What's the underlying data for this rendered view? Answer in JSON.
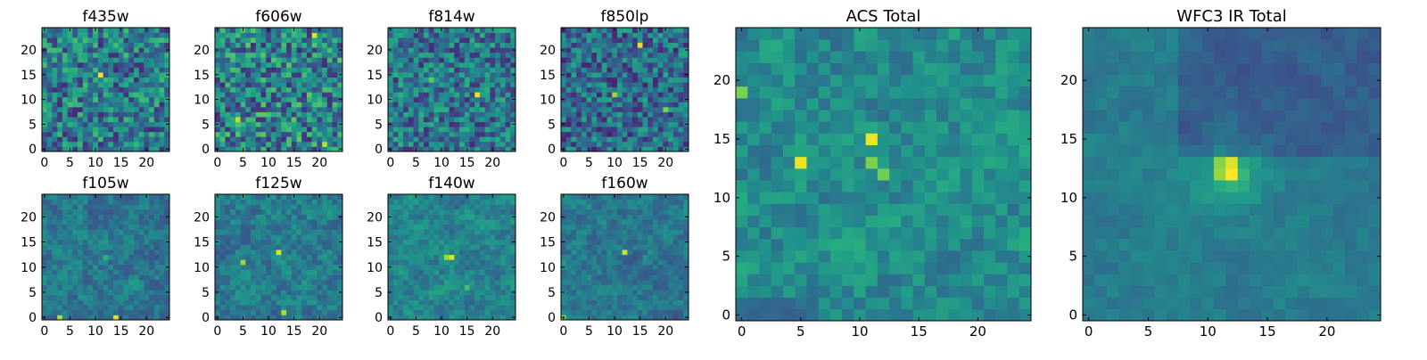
{
  "chart_data": [
    {
      "type": "heatmap",
      "title": "f435w",
      "grid": false,
      "pixels": 25,
      "xlim": [
        -0.5,
        24.5
      ],
      "ylim": [
        -0.5,
        24.5
      ],
      "xticks": [
        0,
        5,
        10,
        15,
        20
      ],
      "yticks": [
        0,
        5,
        10,
        15,
        20
      ],
      "colormap": "viridis",
      "hotspots": [
        {
          "x": 11,
          "y": 15,
          "value": 0.98
        },
        {
          "x": 16,
          "y": 19,
          "value": 0.7
        }
      ],
      "noise": 0.55,
      "base": 0.42,
      "seed": 11
    },
    {
      "type": "heatmap",
      "title": "f606w",
      "grid": false,
      "pixels": 25,
      "xlim": [
        -0.5,
        24.5
      ],
      "ylim": [
        -0.5,
        24.5
      ],
      "xticks": [
        0,
        5,
        10,
        15,
        20
      ],
      "yticks": [
        0,
        5,
        10,
        15,
        20
      ],
      "colormap": "viridis",
      "hotspots": [
        {
          "x": 19,
          "y": 23,
          "value": 0.95
        },
        {
          "x": 4,
          "y": 6,
          "value": 0.9
        },
        {
          "x": 21,
          "y": 1,
          "value": 0.9
        }
      ],
      "noise": 0.6,
      "base": 0.45,
      "seed": 23
    },
    {
      "type": "heatmap",
      "title": "f814w",
      "grid": false,
      "pixels": 25,
      "xlim": [
        -0.5,
        24.5
      ],
      "ylim": [
        -0.5,
        24.5
      ],
      "xticks": [
        0,
        5,
        10,
        15,
        20
      ],
      "yticks": [
        0,
        5,
        10,
        15,
        20
      ],
      "colormap": "viridis",
      "hotspots": [
        {
          "x": 17,
          "y": 11,
          "value": 0.97
        },
        {
          "x": 8,
          "y": 14,
          "value": 0.75
        }
      ],
      "noise": 0.5,
      "base": 0.4,
      "seed": 37
    },
    {
      "type": "heatmap",
      "title": "f850lp",
      "grid": false,
      "pixels": 25,
      "xlim": [
        -0.5,
        24.5
      ],
      "ylim": [
        -0.5,
        24.5
      ],
      "xticks": [
        0,
        5,
        10,
        15,
        20
      ],
      "yticks": [
        0,
        5,
        10,
        15,
        20
      ],
      "colormap": "viridis",
      "hotspots": [
        {
          "x": 15,
          "y": 21,
          "value": 0.96
        },
        {
          "x": 10,
          "y": 11,
          "value": 0.85
        },
        {
          "x": 20,
          "y": 8,
          "value": 0.8
        }
      ],
      "noise": 0.48,
      "base": 0.36,
      "seed": 41
    },
    {
      "type": "heatmap",
      "title": "f105w",
      "grid": false,
      "pixels": 25,
      "xlim": [
        -0.5,
        24.5
      ],
      "ylim": [
        -0.5,
        24.5
      ],
      "xticks": [
        0,
        5,
        10,
        15,
        20
      ],
      "yticks": [
        0,
        5,
        10,
        15,
        20
      ],
      "colormap": "viridis",
      "hotspots": [
        {
          "x": 14,
          "y": 0,
          "value": 0.95
        },
        {
          "x": 3,
          "y": 0,
          "value": 0.88
        },
        {
          "x": 12,
          "y": 12,
          "value": 0.65
        }
      ],
      "noise": 0.4,
      "base": 0.4,
      "seed": 53
    },
    {
      "type": "heatmap",
      "title": "f125w",
      "grid": false,
      "pixels": 25,
      "xlim": [
        -0.5,
        24.5
      ],
      "ylim": [
        -0.5,
        24.5
      ],
      "xticks": [
        0,
        5,
        10,
        15,
        20
      ],
      "yticks": [
        0,
        5,
        10,
        15,
        20
      ],
      "colormap": "viridis",
      "hotspots": [
        {
          "x": 12,
          "y": 13,
          "value": 0.95
        },
        {
          "x": 5,
          "y": 11,
          "value": 0.85
        },
        {
          "x": 13,
          "y": 1,
          "value": 0.88
        }
      ],
      "noise": 0.42,
      "base": 0.42,
      "seed": 67
    },
    {
      "type": "heatmap",
      "title": "f140w",
      "grid": false,
      "pixels": 25,
      "xlim": [
        -0.5,
        24.5
      ],
      "ylim": [
        -0.5,
        24.5
      ],
      "xticks": [
        0,
        5,
        10,
        15,
        20
      ],
      "yticks": [
        0,
        5,
        10,
        15,
        20
      ],
      "colormap": "viridis",
      "hotspots": [
        {
          "x": 12,
          "y": 12,
          "value": 0.95
        },
        {
          "x": 11,
          "y": 12,
          "value": 0.85
        },
        {
          "x": 15,
          "y": 6,
          "value": 0.7
        }
      ],
      "noise": 0.38,
      "base": 0.45,
      "seed": 71
    },
    {
      "type": "heatmap",
      "title": "f160w",
      "grid": false,
      "pixels": 25,
      "xlim": [
        -0.5,
        24.5
      ],
      "ylim": [
        -0.5,
        24.5
      ],
      "xticks": [
        0,
        5,
        10,
        15,
        20
      ],
      "yticks": [
        0,
        5,
        10,
        15,
        20
      ],
      "colormap": "viridis",
      "hotspots": [
        {
          "x": 12,
          "y": 13,
          "value": 0.92
        },
        {
          "x": 0,
          "y": 0,
          "value": 0.8
        }
      ],
      "noise": 0.36,
      "base": 0.4,
      "seed": 83
    },
    {
      "type": "heatmap",
      "title": "ACS Total",
      "grid": false,
      "pixels": 25,
      "xlim": [
        -0.5,
        24.5
      ],
      "ylim": [
        -0.5,
        24.5
      ],
      "xticks": [
        0,
        5,
        10,
        15,
        20
      ],
      "yticks": [
        0,
        5,
        10,
        15,
        20
      ],
      "colormap": "viridis",
      "hotspots": [
        {
          "x": 11,
          "y": 15,
          "value": 0.98
        },
        {
          "x": 5,
          "y": 13,
          "value": 0.97
        },
        {
          "x": 11,
          "y": 13,
          "value": 0.8
        },
        {
          "x": 12,
          "y": 12,
          "value": 0.78
        },
        {
          "x": 0,
          "y": 19,
          "value": 0.8
        }
      ],
      "noise": 0.42,
      "base": 0.48,
      "seed": 97
    },
    {
      "type": "heatmap",
      "title": "WFC3 IR Total",
      "grid": false,
      "pixels": 25,
      "xlim": [
        -0.5,
        24.5
      ],
      "ylim": [
        -0.5,
        24.5
      ],
      "xticks": [
        0,
        5,
        10,
        15,
        20
      ],
      "yticks": [
        0,
        5,
        10,
        15,
        20
      ],
      "colormap": "viridis",
      "hotspots": [
        {
          "x": 12,
          "y": 12,
          "value": 1.0
        },
        {
          "x": 12,
          "y": 13,
          "value": 0.95
        },
        {
          "x": 11,
          "y": 12,
          "value": 0.85
        },
        {
          "x": 11,
          "y": 13,
          "value": 0.82
        }
      ],
      "noise": 0.18,
      "base": 0.42,
      "seed": 101
    }
  ]
}
